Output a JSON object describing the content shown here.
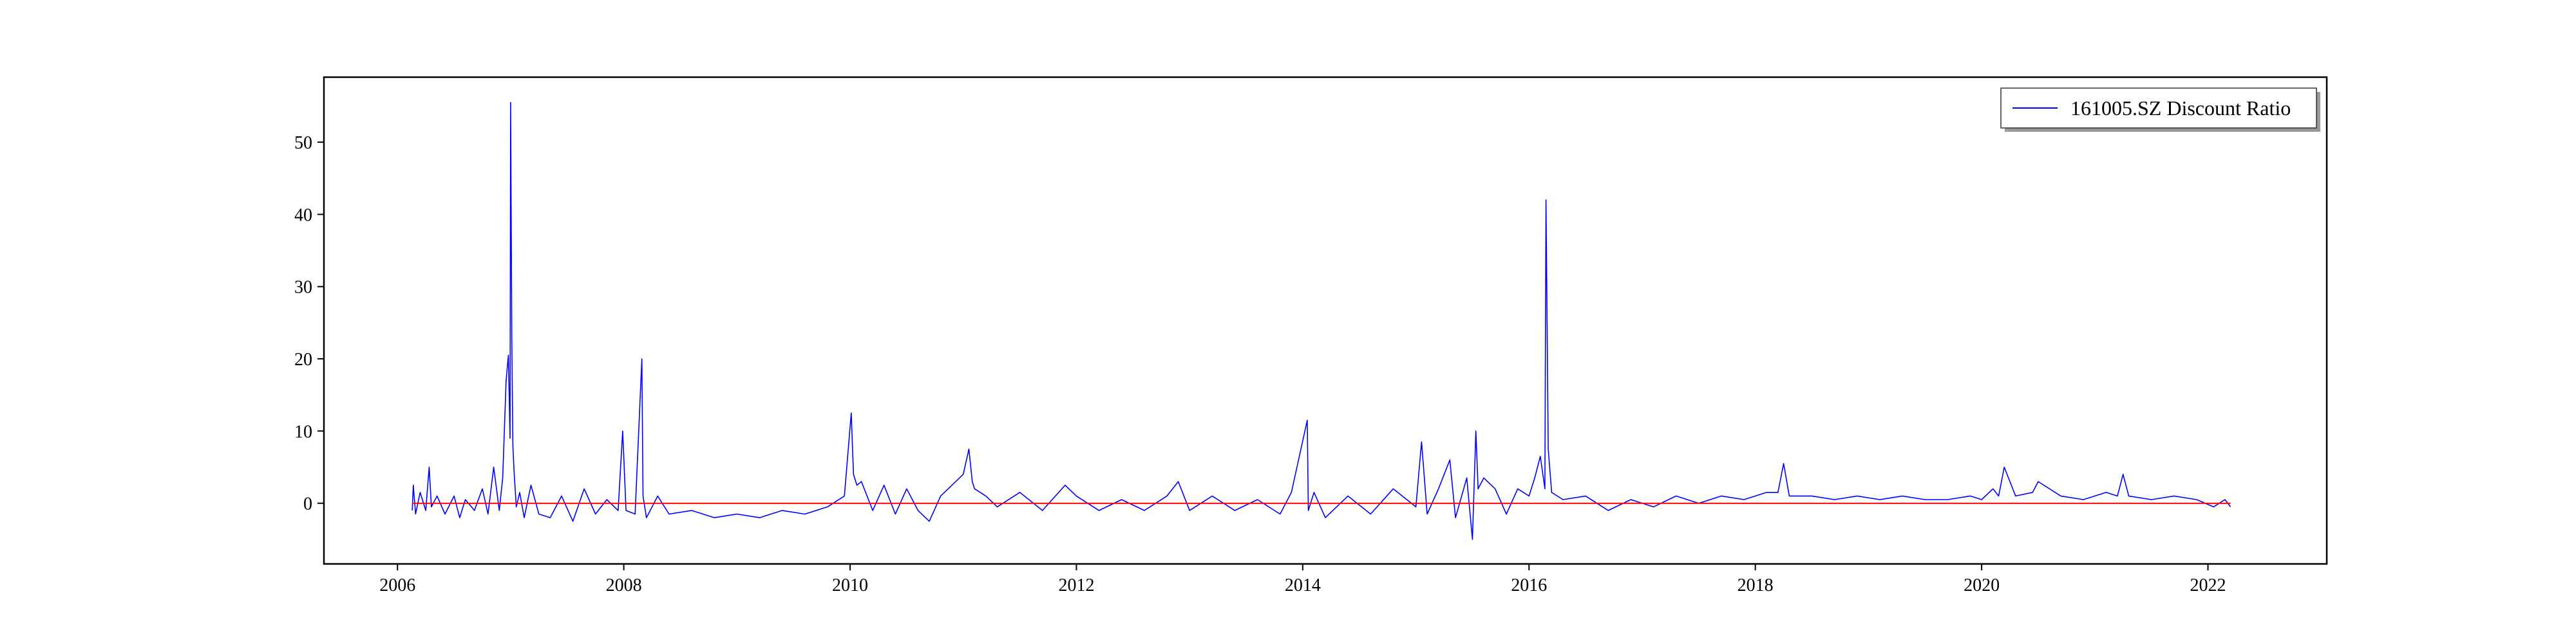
{
  "chart_data": {
    "type": "line",
    "title": "",
    "xlabel": "",
    "ylabel": "",
    "xlim": [
      2005.35,
      2023.05
    ],
    "ylim": [
      -8.4,
      59.0
    ],
    "x_ticks": [
      {
        "value": 2006,
        "label": "2006"
      },
      {
        "value": 2008,
        "label": "2008"
      },
      {
        "value": 2010,
        "label": "2010"
      },
      {
        "value": 2012,
        "label": "2012"
      },
      {
        "value": 2014,
        "label": "2014"
      },
      {
        "value": 2016,
        "label": "2016"
      },
      {
        "value": 2018,
        "label": "2018"
      },
      {
        "value": 2020,
        "label": "2020"
      },
      {
        "value": 2022,
        "label": "2022"
      }
    ],
    "y_ticks": [
      {
        "value": 0,
        "label": "0"
      },
      {
        "value": 10,
        "label": "10"
      },
      {
        "value": 20,
        "label": "20"
      },
      {
        "value": 30,
        "label": "30"
      },
      {
        "value": 40,
        "label": "40"
      },
      {
        "value": 50,
        "label": "50"
      }
    ],
    "grid": false,
    "legend_position": "top-right",
    "series": [
      {
        "name": "161005.SZ Discount Ratio",
        "color": "#0000ff",
        "x": [
          2006.13,
          2006.14,
          2006.16,
          2006.2,
          2006.25,
          2006.28,
          2006.3,
          2006.35,
          2006.42,
          2006.5,
          2006.55,
          2006.6,
          2006.68,
          2006.75,
          2006.8,
          2006.85,
          2006.9,
          2006.93,
          2006.96,
          2006.98,
          2006.995,
          2007.0,
          2007.01,
          2007.02,
          2007.03,
          2007.05,
          2007.08,
          2007.12,
          2007.18,
          2007.25,
          2007.35,
          2007.45,
          2007.55,
          2007.65,
          2007.75,
          2007.85,
          2007.95,
          2007.99,
          2008.02,
          2008.1,
          2008.16,
          2008.17,
          2008.2,
          2008.3,
          2008.4,
          2008.6,
          2008.8,
          2009.0,
          2009.2,
          2009.4,
          2009.6,
          2009.8,
          2009.95,
          2010.01,
          2010.03,
          2010.06,
          2010.1,
          2010.2,
          2010.3,
          2010.4,
          2010.5,
          2010.6,
          2010.7,
          2010.8,
          2010.9,
          2011.0,
          2011.05,
          2011.08,
          2011.1,
          2011.2,
          2011.3,
          2011.5,
          2011.7,
          2011.9,
          2012.0,
          2012.2,
          2012.4,
          2012.6,
          2012.8,
          2012.9,
          2013.0,
          2013.2,
          2013.4,
          2013.6,
          2013.8,
          2013.9,
          2014.04,
          2014.05,
          2014.1,
          2014.2,
          2014.4,
          2014.6,
          2014.8,
          2015.0,
          2015.05,
          2015.1,
          2015.2,
          2015.3,
          2015.35,
          2015.45,
          2015.5,
          2015.53,
          2015.55,
          2015.6,
          2015.7,
          2015.8,
          2015.9,
          2016.0,
          2016.05,
          2016.1,
          2016.14,
          2016.15,
          2016.17,
          2016.2,
          2016.3,
          2016.5,
          2016.7,
          2016.9,
          2017.1,
          2017.3,
          2017.5,
          2017.7,
          2017.9,
          2018.1,
          2018.2,
          2018.25,
          2018.3,
          2018.5,
          2018.7,
          2018.9,
          2019.1,
          2019.3,
          2019.5,
          2019.7,
          2019.9,
          2020.0,
          2020.1,
          2020.15,
          2020.2,
          2020.3,
          2020.45,
          2020.5,
          2020.7,
          2020.9,
          2021.1,
          2021.2,
          2021.25,
          2021.3,
          2021.5,
          2021.7,
          2021.9,
          2022.05,
          2022.15,
          2022.2
        ],
        "y": [
          -1.0,
          2.5,
          -1.5,
          1.5,
          -1.0,
          5.0,
          -0.5,
          1.0,
          -1.5,
          1.0,
          -2.0,
          0.5,
          -1.0,
          2.0,
          -1.5,
          5.0,
          -1.0,
          3.5,
          17.0,
          20.5,
          9.0,
          55.5,
          23.0,
          8.0,
          4.5,
          -0.5,
          1.5,
          -2.0,
          2.5,
          -1.5,
          -2.0,
          1.0,
          -2.5,
          2.0,
          -1.5,
          0.5,
          -1.0,
          10.0,
          -1.0,
          -1.5,
          20.0,
          1.0,
          -2.0,
          1.0,
          -1.5,
          -1.0,
          -2.0,
          -1.5,
          -2.0,
          -1.0,
          -1.5,
          -0.5,
          1.0,
          12.5,
          4.0,
          2.5,
          3.0,
          -1.0,
          2.5,
          -1.5,
          2.0,
          -1.0,
          -2.5,
          1.0,
          2.5,
          4.0,
          7.5,
          3.0,
          2.0,
          1.0,
          -0.5,
          1.5,
          -1.0,
          2.5,
          1.0,
          -1.0,
          0.5,
          -1.0,
          1.0,
          3.0,
          -1.0,
          1.0,
          -1.0,
          0.5,
          -1.5,
          1.5,
          11.5,
          -1.0,
          1.5,
          -2.0,
          1.0,
          -1.5,
          2.0,
          -0.5,
          8.5,
          -1.5,
          2.0,
          6.0,
          -2.0,
          3.5,
          -5.0,
          10.0,
          2.0,
          3.5,
          2.0,
          -1.5,
          2.0,
          1.0,
          3.5,
          6.5,
          2.0,
          42.0,
          7.5,
          1.5,
          0.5,
          1.0,
          -1.0,
          0.5,
          -0.5,
          1.0,
          0.0,
          1.0,
          0.5,
          1.5,
          1.5,
          5.5,
          1.0,
          1.0,
          0.5,
          1.0,
          0.5,
          1.0,
          0.5,
          0.5,
          1.0,
          0.5,
          2.0,
          1.0,
          5.0,
          1.0,
          1.5,
          3.0,
          1.0,
          0.5,
          1.5,
          1.0,
          4.0,
          1.0,
          0.5,
          1.0,
          0.5,
          -0.5,
          0.5,
          -0.5
        ]
      },
      {
        "name": "",
        "color": "#ff0000",
        "x": [
          2006.13,
          2022.2
        ],
        "y": [
          0,
          0
        ]
      }
    ]
  }
}
